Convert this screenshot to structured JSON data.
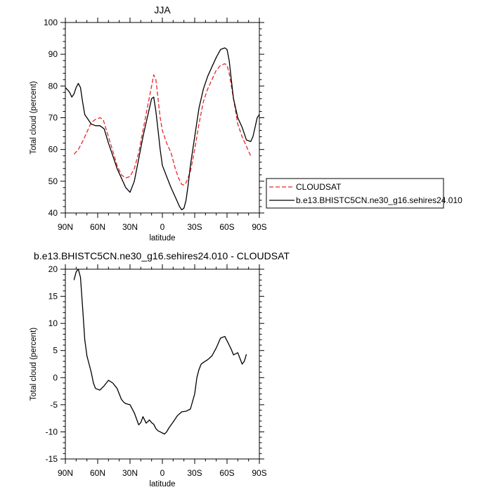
{
  "chart_data": [
    {
      "type": "line",
      "title": "JJA",
      "xlabel": "latitude",
      "ylabel": "Total cloud (percent)",
      "xlim": [
        90,
        -90
      ],
      "ylim": [
        40,
        100
      ],
      "yticks": [
        40,
        50,
        60,
        70,
        80,
        90,
        100
      ],
      "xticks": [
        90,
        60,
        30,
        0,
        -30,
        -60,
        -90
      ],
      "xtick_labels": [
        "90N",
        "60N",
        "30N",
        "0",
        "30S",
        "60S",
        "90S"
      ],
      "legend": "right, outside plot",
      "series": [
        {
          "name": "CLOUDSAT",
          "color": "#e8262b",
          "style": "dashed",
          "x": [
            82,
            78,
            74,
            70,
            66,
            62,
            58,
            55,
            50,
            46,
            42,
            38,
            34,
            30,
            26,
            22,
            18,
            14,
            10,
            8,
            6,
            4,
            2,
            0,
            -4,
            -8,
            -12,
            -15,
            -18,
            -20,
            -22,
            -26,
            -30,
            -34,
            -38,
            -42,
            -46,
            -50,
            -54,
            -58,
            -60,
            -62,
            -66,
            -70,
            -74,
            -78,
            -82
          ],
          "y": [
            58.5,
            60,
            62.5,
            65.5,
            68.5,
            69.5,
            70,
            69.5,
            64,
            59.5,
            55,
            52,
            51,
            51.5,
            54,
            59,
            66,
            73,
            80,
            83.5,
            82,
            76,
            70,
            66,
            62,
            59,
            54,
            51,
            49,
            48.8,
            49.5,
            53,
            60,
            68,
            75,
            79,
            82,
            85,
            86.5,
            87,
            86.5,
            84,
            76,
            68,
            64,
            61,
            58
          ]
        },
        {
          "name": "b.e13.BHISTC5CN.ne30_g16.sehires24.010",
          "color": "#000000",
          "style": "solid",
          "x": [
            90,
            88,
            86,
            84,
            82,
            80,
            78,
            76,
            74,
            72,
            70,
            66,
            62,
            58,
            54,
            50,
            46,
            42,
            38,
            34,
            30,
            26,
            22,
            18,
            14,
            10,
            8,
            6,
            4,
            2,
            0,
            -4,
            -8,
            -12,
            -16,
            -18,
            -20,
            -22,
            -24,
            -26,
            -30,
            -34,
            -38,
            -42,
            -46,
            -50,
            -54,
            -58,
            -60,
            -62,
            -64,
            -66,
            -70,
            -74,
            -78,
            -82,
            -84,
            -86,
            -88,
            -90
          ],
          "y": [
            79.5,
            78.8,
            78,
            76.5,
            77.5,
            79.5,
            80.8,
            79.5,
            75,
            71,
            70,
            68,
            67.5,
            67.5,
            66.5,
            62,
            58,
            54,
            51,
            48,
            46.5,
            50,
            57,
            64,
            70,
            76,
            76.5,
            72,
            66,
            60,
            55,
            51.5,
            48,
            45,
            42,
            41,
            41.5,
            44,
            49,
            55,
            64,
            73,
            79,
            83,
            86,
            89,
            91.5,
            92,
            91.5,
            88,
            82,
            76,
            70,
            67,
            63,
            62.5,
            64,
            67,
            70,
            71
          ]
        }
      ]
    },
    {
      "type": "line",
      "title": "b.e13.BHISTC5CN.ne30_g16.sehires24.010 - CLOUDSAT",
      "xlabel": "latitude",
      "ylabel": "Total cloud (percent)",
      "xlim": [
        90,
        -90
      ],
      "ylim": [
        -15,
        20
      ],
      "yticks": [
        -15,
        -10,
        -5,
        0,
        5,
        10,
        15,
        20
      ],
      "xticks": [
        90,
        60,
        30,
        0,
        -30,
        -60,
        -90
      ],
      "xtick_labels": [
        "90N",
        "60N",
        "30N",
        "0",
        "30S",
        "60S",
        "90S"
      ],
      "series": [
        {
          "color": "#000000",
          "style": "solid",
          "x": [
            82,
            80,
            78,
            76,
            74,
            72,
            70,
            66,
            64,
            62,
            58,
            54,
            50,
            46,
            42,
            38,
            36,
            34,
            30,
            26,
            22,
            20,
            18,
            15,
            12,
            10,
            8,
            6,
            4,
            2,
            0,
            -2,
            -4,
            -6,
            -10,
            -14,
            -18,
            -22,
            -26,
            -30,
            -32,
            -34,
            -36,
            -38,
            -42,
            -46,
            -50,
            -54,
            -58,
            -60,
            -62,
            -64,
            -66,
            -70,
            -74,
            -76,
            -78
          ],
          "y": [
            18,
            19.5,
            20,
            18.5,
            13,
            7,
            4,
            1,
            -1,
            -2,
            -2.3,
            -1.5,
            -0.5,
            -1,
            -2,
            -4,
            -4.5,
            -4.8,
            -5,
            -6.5,
            -8.7,
            -8.3,
            -7.2,
            -8.4,
            -7.8,
            -8.3,
            -8.6,
            -9.4,
            -9.8,
            -10,
            -10.2,
            -10.4,
            -10,
            -9.3,
            -8.2,
            -7,
            -6.3,
            -6.2,
            -5.8,
            -3,
            0,
            1.5,
            2.5,
            2.8,
            3.3,
            4,
            5.5,
            7.3,
            7.6,
            6.8,
            6,
            5.2,
            4.2,
            4.6,
            2.5,
            3,
            4.3
          ]
        }
      ]
    }
  ]
}
